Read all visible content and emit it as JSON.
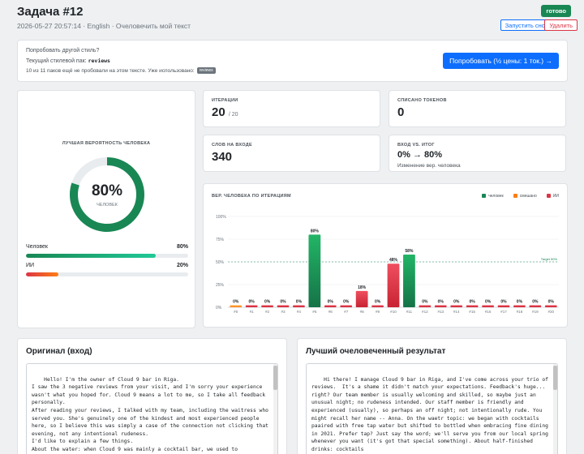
{
  "header": {
    "title": "Задача #12",
    "meta": "2026-05-27 20:57:14 · English · Очеловечить мой текст",
    "status": "готово",
    "run_again": "Запустить снова",
    "delete": "Удалить"
  },
  "style_panel": {
    "question": "Попробовать другой стиль?",
    "current_pack_label": "Текущий стилевой пак:",
    "current_pack": "reviews",
    "remaining_text": "10 из 11 паков ещё не пробовали на этом тексте.  Уже использовано:",
    "used_badge": "reviews",
    "try_button": "Попробовать (½ цены: 1 ток.) →"
  },
  "gauge": {
    "label": "ЛУЧШАЯ ВЕРОЯТНОСТЬ ЧЕЛОВЕКА",
    "value_text": "80%",
    "value": 0.8,
    "caption": "ЧЕЛОВЕК",
    "color": "#198754",
    "human_label": "Человек",
    "human_pct": "80%",
    "human_value": 0.8,
    "ai_label": "ИИ",
    "ai_pct": "20%",
    "ai_value": 0.2
  },
  "stats": {
    "iterations_label": "ИТЕРАЦИИ",
    "iterations_value": "20",
    "iterations_total": "/ 20",
    "tokens_label": "СПИСАНО ТОКЕНОВ",
    "tokens_value": "0",
    "words_label": "СЛОВ НА ВХОДЕ",
    "words_value": "340",
    "io_label": "ВХОД VS. ИТОГ",
    "io_value": "0% → 80%",
    "io_sub": "Изменение вер. человека"
  },
  "chart_data": {
    "type": "bar",
    "title": "ВЕР. ЧЕЛОВЕКА ПО ИТЕРАЦИЯМ",
    "legend": [
      {
        "name": "человек",
        "color": "#198754"
      },
      {
        "name": "смешано",
        "color": "#fd7e14"
      },
      {
        "name": "ИИ",
        "color": "#dc3545"
      }
    ],
    "categories": [
      "#0",
      "#1",
      "#2",
      "#3",
      "#4",
      "#5",
      "#6",
      "#7",
      "#8",
      "#9",
      "#10",
      "#11",
      "#12",
      "#13",
      "#14",
      "#15",
      "#16",
      "#17",
      "#18",
      "#19",
      "#20"
    ],
    "values": [
      0,
      0,
      0,
      0,
      0,
      80,
      0,
      0,
      18,
      0,
      48,
      58,
      0,
      0,
      0,
      0,
      0,
      0,
      0,
      0,
      0
    ],
    "bar_classes": [
      "mixed",
      "ai",
      "ai",
      "ai",
      "ai",
      "human",
      "ai",
      "ai",
      "ai",
      "ai",
      "ai",
      "human",
      "ai",
      "ai",
      "ai",
      "ai",
      "ai",
      "ai",
      "ai",
      "ai",
      "ai"
    ],
    "value_labels": [
      "0%",
      "0%",
      "0%",
      "0%",
      "0%",
      "80%",
      "0%",
      "0%",
      "18%",
      "0%",
      "48%",
      "58%",
      "0%",
      "0%",
      "0%",
      "0%",
      "0%",
      "0%",
      "0%",
      "0%",
      "0%"
    ],
    "yticks": [
      "0%",
      "25%",
      "50%",
      "75%",
      "100%"
    ],
    "ylim": [
      0,
      100
    ],
    "target_value": 50,
    "target_label": "Target 50%",
    "grid": true
  },
  "original": {
    "title": "Оригинал (вход)",
    "text": "Hello! I'm the owner of Cloud 9 bar in Riga.\nI saw the 3 negative reviews from your visit, and I'm sorry your experience wasn't what you hoped for. Cloud 9 means a lot to me, so I take all feedback personally.\nAfter reading your reviews, I talked with my team, including the waitress who served you. She's genuinely one of the kindest and most experienced people here, so I believe this was simply a case of the connection not clicking that evening, not any intentional rudeness.\nI'd like to explain a few things.\nAbout the water: when Cloud 9 was mainly a cocktail bar, we used to"
  },
  "result": {
    "title": "Лучший очеловеченный результат",
    "text": "Hi there! I manage Cloud 9 bar in Riga, and I've come across your trio of reviews.  It's a shame it didn't match your expectations. Feedback's huge...  right? Our team member is usually welcoming and skilled, so maybe just an unusual night; no rudeness intended. Our staff member is friendly and experienced (usually), so perhaps an off night; not intentionally rude. You might recall her name -- Anna. On the waetr topic: we began with cocktails paaired with free tap water but shifted to bottled when embracing fine dining in 2021. Prefer tap? Just say the word; we'll serve you from our local spring whenever you want (it's got that special something). About half-finished drinks: cocktails"
  }
}
